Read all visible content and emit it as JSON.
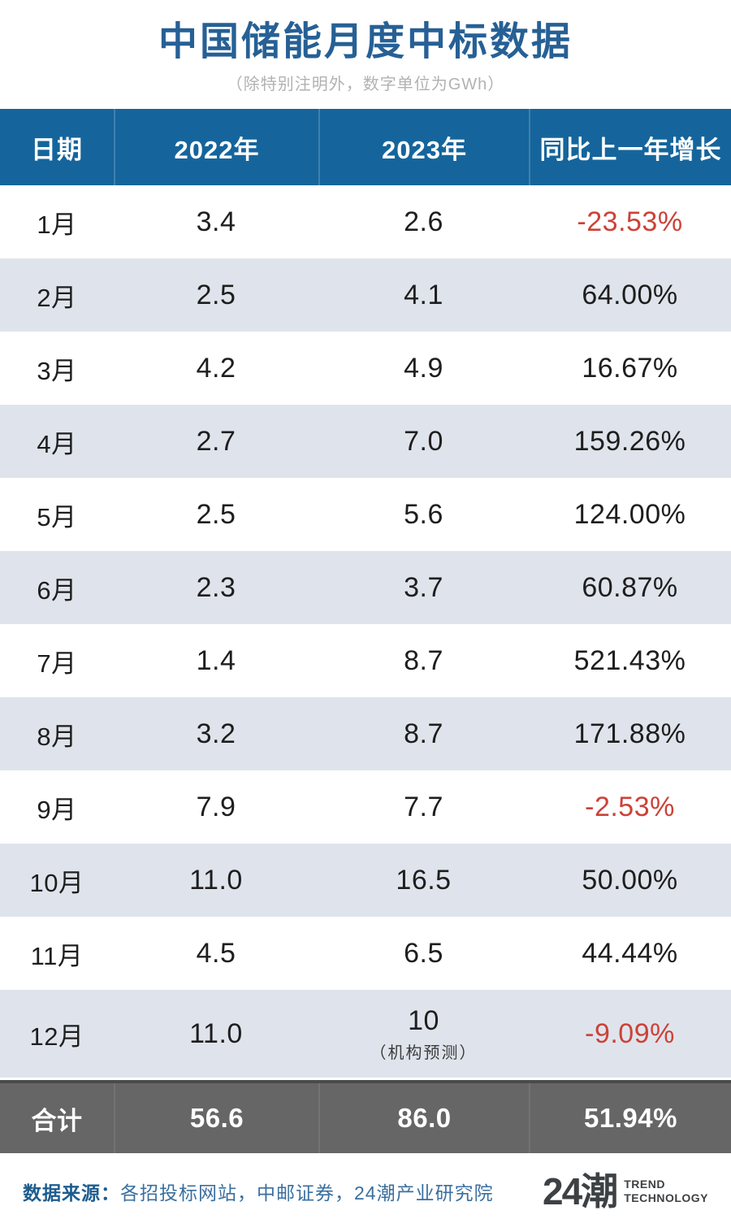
{
  "title": "中国储能月度中标数据",
  "subtitle": "（除特别注明外，数字单位为GWh）",
  "table": {
    "headers": [
      "日期",
      "2022年",
      "2023年",
      "同比上一年增长"
    ],
    "rows": [
      {
        "month": "1月",
        "y2022": "3.4",
        "y2023": "2.6",
        "growth": "-23.53%"
      },
      {
        "month": "2月",
        "y2022": "2.5",
        "y2023": "4.1",
        "growth": "64.00%"
      },
      {
        "month": "3月",
        "y2022": "4.2",
        "y2023": "4.9",
        "growth": "16.67%"
      },
      {
        "month": "4月",
        "y2022": "2.7",
        "y2023": "7.0",
        "growth": "159.26%"
      },
      {
        "month": "5月",
        "y2022": "2.5",
        "y2023": "5.6",
        "growth": "124.00%"
      },
      {
        "month": "6月",
        "y2022": "2.3",
        "y2023": "3.7",
        "growth": "60.87%"
      },
      {
        "month": "7月",
        "y2022": "1.4",
        "y2023": "8.7",
        "growth": "521.43%"
      },
      {
        "month": "8月",
        "y2022": "3.2",
        "y2023": "8.7",
        "growth": "171.88%"
      },
      {
        "month": "9月",
        "y2022": "7.9",
        "y2023": "7.7",
        "growth": "-2.53%"
      },
      {
        "month": "10月",
        "y2022": "11.0",
        "y2023": "16.5",
        "growth": "50.00%"
      },
      {
        "month": "11月",
        "y2022": "4.5",
        "y2023": "6.5",
        "growth": "44.44%"
      },
      {
        "month": "12月",
        "y2022": "11.0",
        "y2023": "10",
        "y2023_note": "（机构预测）",
        "growth": "-9.09%"
      }
    ],
    "total": {
      "label": "合计",
      "y2022": "56.6",
      "y2023": "86.0",
      "growth": "51.94%"
    }
  },
  "footer": {
    "source_label": "数据来源：",
    "source_text": "各招投标网站，中邮证券，24潮产业研究院",
    "logo_text": "24潮",
    "logo_sub_line1": "TREND",
    "logo_sub_line2": "TECHNOLOGY"
  },
  "colors": {
    "header_bg": "#15659c",
    "title_blue": "#266095",
    "row_alt_bg": "#dfe4ec",
    "negative_red": "#cc4238",
    "total_bg": "#666666",
    "subtitle_gray": "#b2b2b2",
    "source_blue": "#3a6f9f"
  },
  "chart_data": {
    "type": "table",
    "title": "中国储能月度中标数据",
    "unit_note": "（除特别注明外，数字单位为GWh）",
    "columns": [
      "日期",
      "2022年",
      "2023年",
      "同比上一年增长"
    ],
    "rows": [
      [
        "1月",
        3.4,
        2.6,
        "-23.53%"
      ],
      [
        "2月",
        2.5,
        4.1,
        "64.00%"
      ],
      [
        "3月",
        4.2,
        4.9,
        "16.67%"
      ],
      [
        "4月",
        2.7,
        7.0,
        "159.26%"
      ],
      [
        "5月",
        2.5,
        5.6,
        "124.00%"
      ],
      [
        "6月",
        2.3,
        3.7,
        "60.87%"
      ],
      [
        "7月",
        1.4,
        8.7,
        "521.43%"
      ],
      [
        "8月",
        3.2,
        8.7,
        "171.88%"
      ],
      [
        "9月",
        7.9,
        7.7,
        "-2.53%"
      ],
      [
        "10月",
        11.0,
        16.5,
        "50.00%"
      ],
      [
        "11月",
        4.5,
        6.5,
        "44.44%"
      ],
      [
        "12月",
        11.0,
        "10（机构预测）",
        "-9.09%"
      ]
    ],
    "total_row": [
      "合计",
      56.6,
      86.0,
      "51.94%"
    ],
    "source": "各招投标网站，中邮证券，24潮产业研究院"
  }
}
